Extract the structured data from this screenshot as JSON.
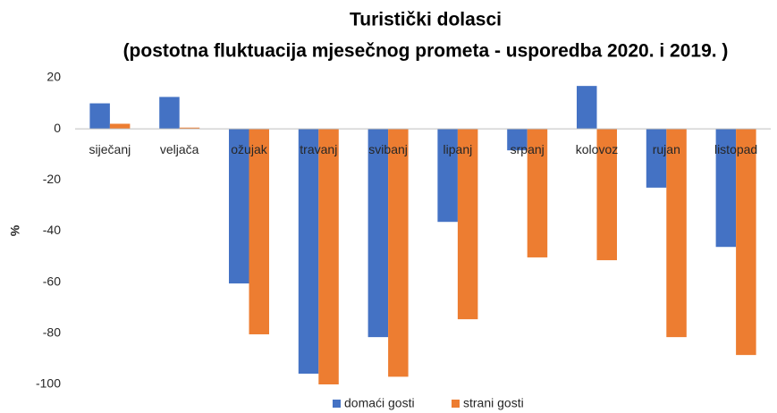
{
  "chart_data": {
    "type": "bar",
    "title": [
      "Turistički dolasci",
      "(postotna fluktuacija mjesečnog prometa - usporedba 2020. i 2019. )"
    ],
    "y_label": "%",
    "categories": [
      "siječanj",
      "veljača",
      "ožujak",
      "travanj",
      "svibanj",
      "lipanj",
      "srpanj",
      "kolovoz",
      "rujan",
      "listopad"
    ],
    "series": [
      {
        "name": "domaći gosti",
        "color": "#4472c4",
        "values": [
          10,
          12.5,
          -60.5,
          -95.8,
          -81.5,
          -36.4,
          -8.4,
          16.8,
          -23,
          -46.2
        ]
      },
      {
        "name": "strani gosti",
        "color": "#ed7d31",
        "values": [
          2,
          0.5,
          -80.4,
          -100,
          -97,
          -74.5,
          -50.3,
          -51.4,
          -81.5,
          -88.5
        ]
      }
    ],
    "ylim": [
      -100,
      20
    ],
    "yticks": [
      -100,
      -80,
      -60,
      -40,
      -20,
      0,
      20
    ],
    "grid": false,
    "legend": "bottom"
  }
}
